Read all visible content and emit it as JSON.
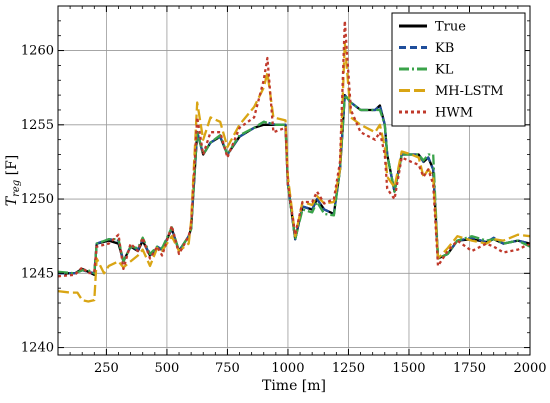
{
  "chart_data": {
    "type": "line",
    "title": "",
    "xlabel": "Time [m]",
    "ylabel_main": "T",
    "ylabel_sub": "reg",
    "ylabel_unit": " [F]",
    "xlim": [
      50,
      2000
    ],
    "ylim": [
      1239.5,
      1263
    ],
    "xticks": [
      250,
      500,
      750,
      1000,
      1250,
      1500,
      1750,
      2000
    ],
    "yticks": [
      1240,
      1245,
      1250,
      1255,
      1260
    ],
    "grid": true,
    "legend_position": "top-right",
    "series": [
      {
        "name": "True",
        "color": "#000000",
        "dash": "solid",
        "points": [
          [
            50,
            1245
          ],
          [
            120,
            1245
          ],
          [
            150,
            1245.3
          ],
          [
            175,
            1245.1
          ],
          [
            200,
            1244.9
          ],
          [
            210,
            1247
          ],
          [
            260,
            1247.2
          ],
          [
            300,
            1247
          ],
          [
            320,
            1245.8
          ],
          [
            350,
            1246.8
          ],
          [
            380,
            1246.5
          ],
          [
            400,
            1247.2
          ],
          [
            430,
            1246.2
          ],
          [
            460,
            1246.7
          ],
          [
            480,
            1246.6
          ],
          [
            520,
            1248
          ],
          [
            550,
            1246.5
          ],
          [
            590,
            1247.5
          ],
          [
            600,
            1248
          ],
          [
            625,
            1254.5
          ],
          [
            650,
            1253
          ],
          [
            680,
            1253.8
          ],
          [
            720,
            1254.2
          ],
          [
            750,
            1253
          ],
          [
            800,
            1254.2
          ],
          [
            860,
            1254.8
          ],
          [
            900,
            1255
          ],
          [
            950,
            1255
          ],
          [
            990,
            1255
          ],
          [
            1000,
            1251
          ],
          [
            1030,
            1247.3
          ],
          [
            1060,
            1249.5
          ],
          [
            1100,
            1249.3
          ],
          [
            1120,
            1250
          ],
          [
            1150,
            1249.3
          ],
          [
            1190,
            1249
          ],
          [
            1215,
            1252
          ],
          [
            1235,
            1257
          ],
          [
            1260,
            1256.5
          ],
          [
            1300,
            1256
          ],
          [
            1360,
            1256
          ],
          [
            1380,
            1256.3
          ],
          [
            1400,
            1255
          ],
          [
            1410,
            1253
          ],
          [
            1440,
            1250.5
          ],
          [
            1470,
            1253
          ],
          [
            1510,
            1253
          ],
          [
            1540,
            1253
          ],
          [
            1560,
            1252.5
          ],
          [
            1580,
            1252.8
          ],
          [
            1600,
            1252
          ],
          [
            1620,
            1246
          ],
          [
            1660,
            1246.3
          ],
          [
            1700,
            1247.2
          ],
          [
            1760,
            1247.3
          ],
          [
            1820,
            1247.1
          ],
          [
            1850,
            1247.3
          ],
          [
            1890,
            1247
          ],
          [
            1950,
            1247.2
          ],
          [
            2000,
            1247
          ]
        ]
      },
      {
        "name": "KB",
        "color": "#1f4e9b",
        "dash": "7,4",
        "points": [
          [
            50,
            1245
          ],
          [
            120,
            1245
          ],
          [
            150,
            1245.2
          ],
          [
            175,
            1245.1
          ],
          [
            200,
            1245
          ],
          [
            210,
            1247
          ],
          [
            260,
            1247.3
          ],
          [
            300,
            1247.2
          ],
          [
            320,
            1245.8
          ],
          [
            350,
            1246.8
          ],
          [
            380,
            1246.6
          ],
          [
            400,
            1247.3
          ],
          [
            430,
            1246.2
          ],
          [
            460,
            1246.8
          ],
          [
            480,
            1246.6
          ],
          [
            520,
            1248
          ],
          [
            550,
            1246.5
          ],
          [
            590,
            1247.5
          ],
          [
            600,
            1248
          ],
          [
            625,
            1254.5
          ],
          [
            650,
            1253
          ],
          [
            680,
            1253.8
          ],
          [
            720,
            1254.2
          ],
          [
            750,
            1253
          ],
          [
            800,
            1254.2
          ],
          [
            860,
            1254.8
          ],
          [
            900,
            1255.2
          ],
          [
            950,
            1255
          ],
          [
            990,
            1255
          ],
          [
            1000,
            1251
          ],
          [
            1030,
            1247.3
          ],
          [
            1060,
            1249.5
          ],
          [
            1100,
            1249.3
          ],
          [
            1120,
            1250
          ],
          [
            1150,
            1249.3
          ],
          [
            1190,
            1249
          ],
          [
            1215,
            1252
          ],
          [
            1235,
            1257
          ],
          [
            1260,
            1256.5
          ],
          [
            1300,
            1256
          ],
          [
            1360,
            1256
          ],
          [
            1380,
            1256.3
          ],
          [
            1400,
            1255
          ],
          [
            1410,
            1253
          ],
          [
            1440,
            1250.5
          ],
          [
            1470,
            1253
          ],
          [
            1510,
            1253
          ],
          [
            1540,
            1253
          ],
          [
            1560,
            1252.5
          ],
          [
            1580,
            1252.8
          ],
          [
            1600,
            1252
          ],
          [
            1620,
            1246
          ],
          [
            1660,
            1246.3
          ],
          [
            1700,
            1247.2
          ],
          [
            1760,
            1247.4
          ],
          [
            1820,
            1247.1
          ],
          [
            1850,
            1247.4
          ],
          [
            1890,
            1247
          ],
          [
            1950,
            1247.2
          ],
          [
            2000,
            1247
          ]
        ]
      },
      {
        "name": "KL",
        "color": "#3aa34a",
        "dash": "10,3,2,3",
        "points": [
          [
            50,
            1245.1
          ],
          [
            120,
            1245
          ],
          [
            150,
            1245.2
          ],
          [
            175,
            1245.2
          ],
          [
            200,
            1245
          ],
          [
            210,
            1247
          ],
          [
            260,
            1247.3
          ],
          [
            300,
            1247.3
          ],
          [
            320,
            1245.8
          ],
          [
            350,
            1246.8
          ],
          [
            380,
            1246.7
          ],
          [
            400,
            1247.4
          ],
          [
            430,
            1246.3
          ],
          [
            460,
            1246.8
          ],
          [
            480,
            1246.7
          ],
          [
            520,
            1248.1
          ],
          [
            550,
            1246.5
          ],
          [
            590,
            1247.5
          ],
          [
            600,
            1248
          ],
          [
            625,
            1254.6
          ],
          [
            650,
            1253
          ],
          [
            680,
            1253.8
          ],
          [
            720,
            1254.3
          ],
          [
            750,
            1253
          ],
          [
            800,
            1254.3
          ],
          [
            860,
            1254.8
          ],
          [
            900,
            1255.2
          ],
          [
            950,
            1255
          ],
          [
            990,
            1255
          ],
          [
            1000,
            1251
          ],
          [
            1030,
            1247.3
          ],
          [
            1060,
            1249.3
          ],
          [
            1100,
            1249.1
          ],
          [
            1120,
            1249.8
          ],
          [
            1150,
            1249
          ],
          [
            1190,
            1248.9
          ],
          [
            1215,
            1252
          ],
          [
            1235,
            1257
          ],
          [
            1260,
            1256.5
          ],
          [
            1300,
            1256
          ],
          [
            1360,
            1256
          ],
          [
            1380,
            1256
          ],
          [
            1400,
            1255
          ],
          [
            1410,
            1253
          ],
          [
            1440,
            1250.5
          ],
          [
            1470,
            1253
          ],
          [
            1510,
            1253
          ],
          [
            1540,
            1253
          ],
          [
            1560,
            1252.6
          ],
          [
            1580,
            1253
          ],
          [
            1600,
            1253
          ],
          [
            1620,
            1246
          ],
          [
            1660,
            1246.3
          ],
          [
            1700,
            1247.2
          ],
          [
            1760,
            1247.5
          ],
          [
            1820,
            1247.2
          ],
          [
            1850,
            1247.3
          ],
          [
            1890,
            1247
          ],
          [
            1950,
            1247.2
          ],
          [
            2000,
            1246.8
          ]
        ]
      },
      {
        "name": "MH-LSTM",
        "color": "#d9a514",
        "dash": "11,4",
        "points": [
          [
            50,
            1243.8
          ],
          [
            100,
            1243.7
          ],
          [
            130,
            1243.7
          ],
          [
            150,
            1243.2
          ],
          [
            175,
            1243.1
          ],
          [
            200,
            1243.2
          ],
          [
            210,
            1246
          ],
          [
            240,
            1245
          ],
          [
            260,
            1245.5
          ],
          [
            300,
            1245.8
          ],
          [
            320,
            1245.4
          ],
          [
            350,
            1245.8
          ],
          [
            380,
            1246.2
          ],
          [
            400,
            1246.6
          ],
          [
            430,
            1245.5
          ],
          [
            460,
            1246.7
          ],
          [
            480,
            1246.5
          ],
          [
            520,
            1247.5
          ],
          [
            550,
            1246.5
          ],
          [
            590,
            1247
          ],
          [
            600,
            1248.5
          ],
          [
            625,
            1256.5
          ],
          [
            650,
            1254
          ],
          [
            680,
            1255.5
          ],
          [
            720,
            1255.2
          ],
          [
            750,
            1253.5
          ],
          [
            800,
            1255
          ],
          [
            860,
            1256.2
          ],
          [
            900,
            1257.5
          ],
          [
            915,
            1258.5
          ],
          [
            940,
            1255.5
          ],
          [
            990,
            1255.3
          ],
          [
            1000,
            1251.5
          ],
          [
            1030,
            1247.5
          ],
          [
            1060,
            1249.8
          ],
          [
            1100,
            1249.6
          ],
          [
            1120,
            1250.2
          ],
          [
            1150,
            1249.7
          ],
          [
            1190,
            1249.8
          ],
          [
            1215,
            1252
          ],
          [
            1235,
            1260.5
          ],
          [
            1260,
            1255.5
          ],
          [
            1300,
            1255
          ],
          [
            1360,
            1254.5
          ],
          [
            1380,
            1255
          ],
          [
            1400,
            1253.5
          ],
          [
            1410,
            1251.5
          ],
          [
            1440,
            1250.8
          ],
          [
            1470,
            1253.2
          ],
          [
            1510,
            1253
          ],
          [
            1540,
            1252.8
          ],
          [
            1560,
            1251.5
          ],
          [
            1580,
            1252
          ],
          [
            1600,
            1251.5
          ],
          [
            1620,
            1246
          ],
          [
            1660,
            1246.7
          ],
          [
            1700,
            1247.5
          ],
          [
            1760,
            1247.2
          ],
          [
            1820,
            1247
          ],
          [
            1850,
            1247.3
          ],
          [
            1890,
            1247.2
          ],
          [
            1950,
            1247.6
          ],
          [
            2000,
            1247.5
          ]
        ]
      },
      {
        "name": "HWM",
        "color": "#c0392b",
        "dash": "3,3",
        "points": [
          [
            50,
            1244.8
          ],
          [
            120,
            1244.9
          ],
          [
            150,
            1245.4
          ],
          [
            175,
            1245
          ],
          [
            200,
            1245.1
          ],
          [
            210,
            1246.8
          ],
          [
            260,
            1247
          ],
          [
            300,
            1247.6
          ],
          [
            320,
            1245.3
          ],
          [
            350,
            1247
          ],
          [
            380,
            1246.5
          ],
          [
            400,
            1247.4
          ],
          [
            430,
            1246
          ],
          [
            460,
            1246.8
          ],
          [
            480,
            1246.2
          ],
          [
            520,
            1248.2
          ],
          [
            550,
            1246.3
          ],
          [
            590,
            1247.5
          ],
          [
            600,
            1248.2
          ],
          [
            625,
            1255.5
          ],
          [
            650,
            1253
          ],
          [
            680,
            1254.5
          ],
          [
            720,
            1254.5
          ],
          [
            750,
            1252.8
          ],
          [
            800,
            1254.8
          ],
          [
            860,
            1255.5
          ],
          [
            900,
            1258
          ],
          [
            915,
            1259.5
          ],
          [
            940,
            1254.5
          ],
          [
            990,
            1254.8
          ],
          [
            1000,
            1251
          ],
          [
            1030,
            1247.6
          ],
          [
            1060,
            1249.8
          ],
          [
            1100,
            1249.8
          ],
          [
            1120,
            1250.5
          ],
          [
            1150,
            1249.7
          ],
          [
            1190,
            1250
          ],
          [
            1215,
            1252.5
          ],
          [
            1235,
            1262
          ],
          [
            1260,
            1256
          ],
          [
            1300,
            1254.5
          ],
          [
            1360,
            1254
          ],
          [
            1380,
            1254.5
          ],
          [
            1400,
            1253
          ],
          [
            1410,
            1250.7
          ],
          [
            1440,
            1250
          ],
          [
            1470,
            1252.8
          ],
          [
            1510,
            1252.5
          ],
          [
            1540,
            1252.3
          ],
          [
            1560,
            1251.5
          ],
          [
            1580,
            1252
          ],
          [
            1600,
            1251
          ],
          [
            1620,
            1245.5
          ],
          [
            1660,
            1246.5
          ],
          [
            1700,
            1247.2
          ],
          [
            1760,
            1246.5
          ],
          [
            1820,
            1247
          ],
          [
            1850,
            1246.8
          ],
          [
            1890,
            1246.4
          ],
          [
            1950,
            1246.6
          ],
          [
            2000,
            1247
          ]
        ]
      }
    ]
  }
}
